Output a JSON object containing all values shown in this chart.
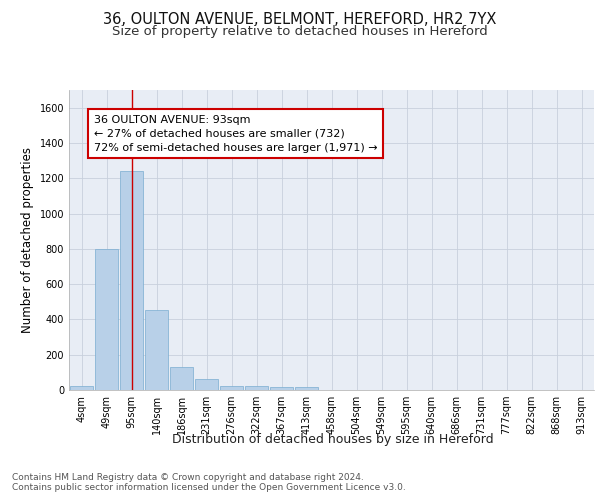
{
  "title_line1": "36, OULTON AVENUE, BELMONT, HEREFORD, HR2 7YX",
  "title_line2": "Size of property relative to detached houses in Hereford",
  "xlabel": "Distribution of detached houses by size in Hereford",
  "ylabel": "Number of detached properties",
  "categories": [
    "4sqm",
    "49sqm",
    "95sqm",
    "140sqm",
    "186sqm",
    "231sqm",
    "276sqm",
    "322sqm",
    "367sqm",
    "413sqm",
    "458sqm",
    "504sqm",
    "549sqm",
    "595sqm",
    "640sqm",
    "686sqm",
    "731sqm",
    "777sqm",
    "822sqm",
    "868sqm",
    "913sqm"
  ],
  "values": [
    22,
    800,
    1240,
    455,
    130,
    62,
    25,
    20,
    15,
    15,
    0,
    0,
    0,
    0,
    0,
    0,
    0,
    0,
    0,
    0,
    0
  ],
  "bar_color": "#b8d0e8",
  "bar_edge_color": "#7aacd0",
  "highlight_index": 2,
  "highlight_line_color": "#cc0000",
  "annotation_text": "36 OULTON AVENUE: 93sqm\n← 27% of detached houses are smaller (732)\n72% of semi-detached houses are larger (1,971) →",
  "annotation_box_color": "#ffffff",
  "annotation_box_edge": "#cc0000",
  "ylim": [
    0,
    1700
  ],
  "yticks": [
    0,
    200,
    400,
    600,
    800,
    1000,
    1200,
    1400,
    1600
  ],
  "grid_color": "#c8d0dc",
  "background_color": "#e8edf5",
  "footer_text": "Contains HM Land Registry data © Crown copyright and database right 2024.\nContains public sector information licensed under the Open Government Licence v3.0.",
  "title_fontsize": 10.5,
  "subtitle_fontsize": 9.5,
  "ylabel_fontsize": 8.5,
  "xlabel_fontsize": 9,
  "tick_fontsize": 7,
  "annotation_fontsize": 8,
  "footer_fontsize": 6.5
}
